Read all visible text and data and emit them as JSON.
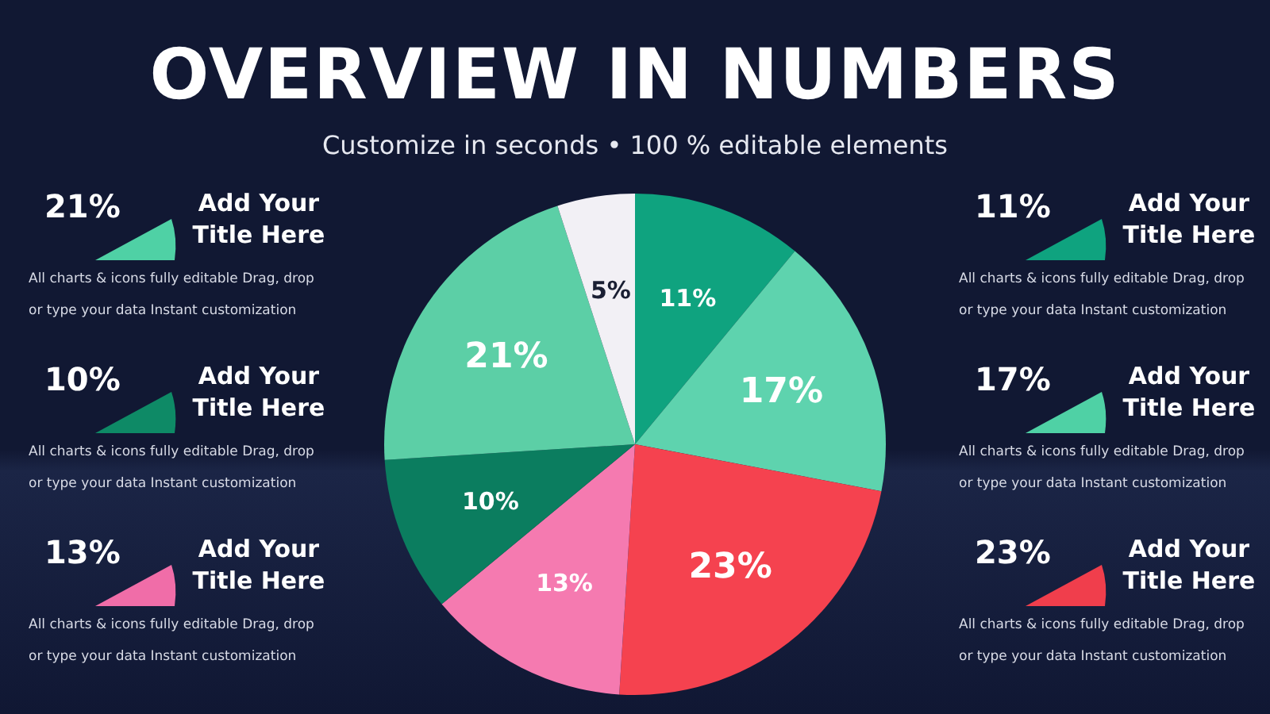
{
  "chart_data": {
    "type": "pie",
    "title": "OVERVIEW IN NUMBERS",
    "subtitle": "Customize in seconds • 100 % editable elements",
    "categories": [
      null,
      null,
      null,
      null,
      null,
      null,
      null
    ],
    "values": [
      11,
      17,
      23,
      13,
      10,
      21,
      5
    ],
    "value_labels": [
      "11%",
      "17%",
      "23%",
      "13%",
      "10%",
      "21%",
      "5%"
    ],
    "colors": [
      "#0fa37f",
      "#5ed3ae",
      "#f5424f",
      "#f57ab0",
      "#0b7d5f",
      "#5ccfa6",
      "#f2f0f5"
    ],
    "legend": false,
    "annotations": [
      "21%",
      "Add Your Title Here",
      "All charts & icons fully editable Drag, drop or type your data Instant customization",
      "10%",
      "Add Your Title Here",
      "All charts & icons fully editable Drag, drop or type your data Instant customization",
      "13%",
      "Add Your Title Here",
      "All charts & icons fully editable Drag, drop or type your data Instant customization",
      "11%",
      "Add Your Title Here",
      "All charts & icons fully editable Drag, drop or type your data Instant customization",
      "17%",
      "Add Your Title Here",
      "All charts & icons fully editable Drag, drop or type your data Instant customization",
      "23%",
      "Add Your Title Here",
      "All charts & icons fully editable Drag, drop or type your data Instant customization"
    ]
  }
}
